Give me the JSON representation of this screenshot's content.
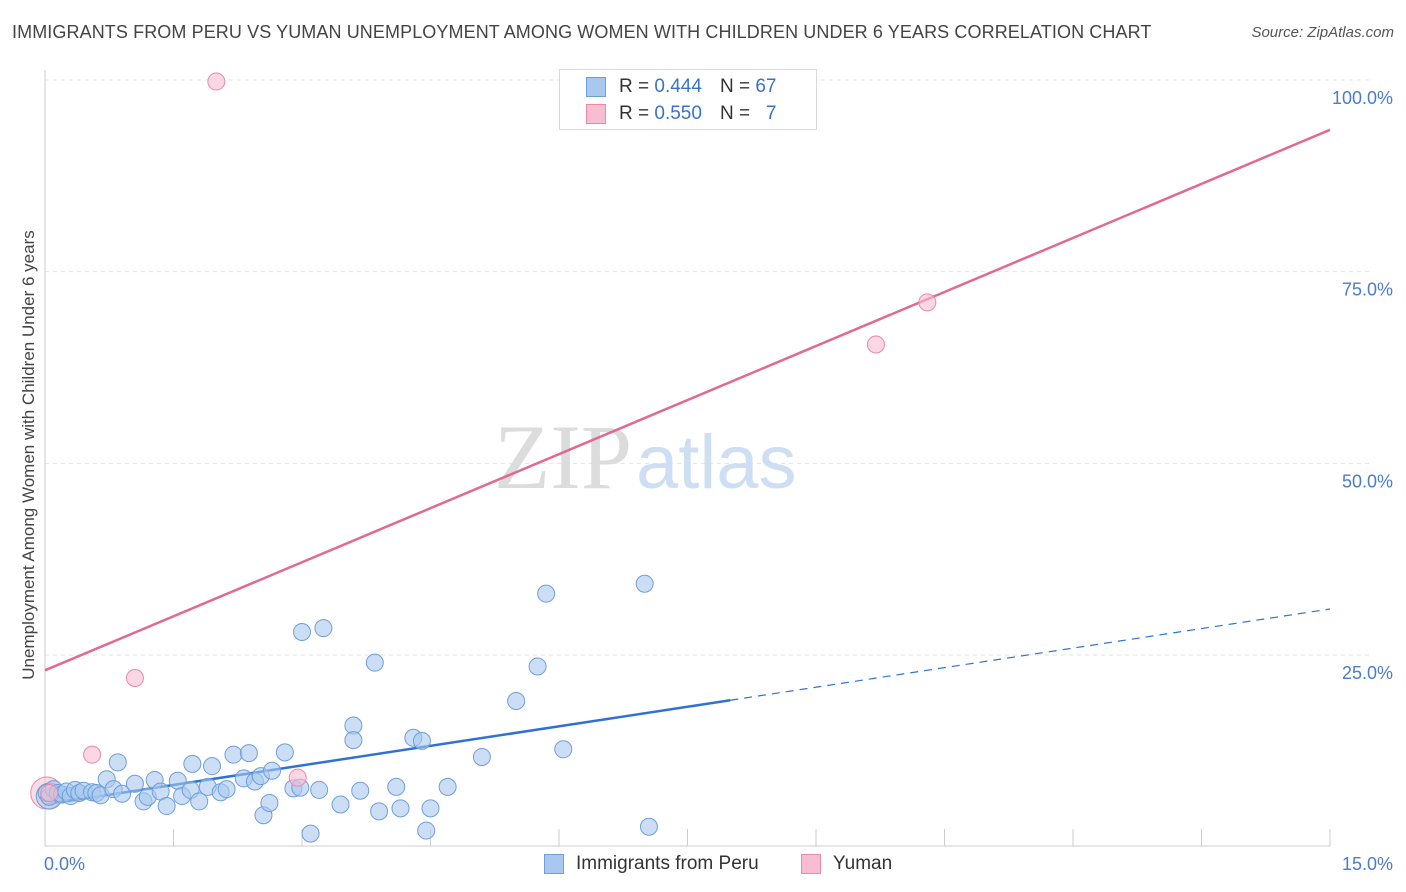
{
  "title": "IMMIGRANTS FROM PERU VS YUMAN UNEMPLOYMENT AMONG WOMEN WITH CHILDREN UNDER 6 YEARS CORRELATION CHART",
  "source": "Source: ZipAtlas.com",
  "watermark": {
    "zip": "ZIP",
    "atlas": "atlas"
  },
  "legend": {
    "series1": {
      "r_label": "R =",
      "r_value": "0.444",
      "n_label": "N =",
      "n_value": "67"
    },
    "series2": {
      "r_label": "R =",
      "r_value": "0.550",
      "n_label": "N =",
      "n_value": "7"
    }
  },
  "colors": {
    "blue_fill": "#a9c8f0",
    "blue_stroke": "#6f9fd8",
    "blue_line": "#2f72d3",
    "pink_fill": "#f7bdd0",
    "pink_stroke": "#e88aa8",
    "pink_line": "#e06a92",
    "grid": "#e3e3e3",
    "tick_text": "#4a7cc9"
  },
  "chart_data": {
    "type": "scatter",
    "title": "IMMIGRANTS FROM PERU VS YUMAN UNEMPLOYMENT AMONG WOMEN WITH CHILDREN UNDER 6 YEARS CORRELATION CHART",
    "xlabel": "",
    "ylabel": "Unemployment Among Women with Children Under 6 years",
    "xlim": [
      0,
      15
    ],
    "ylim": [
      0,
      104
    ],
    "x_tick_labels": [
      {
        "value": 0,
        "label": "0.0%"
      },
      {
        "value": 15,
        "label": "15.0%"
      }
    ],
    "y_tick_labels": [
      {
        "value": 25,
        "label": "25.0%"
      },
      {
        "value": 50,
        "label": "50.0%"
      },
      {
        "value": 75,
        "label": "75.0%"
      },
      {
        "value": 100,
        "label": "100.0%"
      }
    ],
    "series": [
      {
        "name": "Immigrants from Peru",
        "color": "blue",
        "r": 0.444,
        "n": 67,
        "trend": {
          "x_start": 0,
          "y_start": 5.5,
          "x_solid_end": 8.0,
          "x_end": 15,
          "y_end": 31.0
        },
        "points": [
          [
            0.02,
            7.0
          ],
          [
            0.05,
            6.5
          ],
          [
            0.1,
            7.5
          ],
          [
            0.15,
            7.0
          ],
          [
            0.2,
            6.8
          ],
          [
            0.25,
            7.2
          ],
          [
            0.3,
            6.6
          ],
          [
            0.35,
            7.4
          ],
          [
            0.4,
            7.0
          ],
          [
            0.45,
            7.3
          ],
          [
            0.55,
            7.1
          ],
          [
            0.6,
            7.0
          ],
          [
            0.65,
            6.7
          ],
          [
            0.72,
            8.8
          ],
          [
            0.8,
            7.5
          ],
          [
            0.85,
            11.0
          ],
          [
            0.9,
            6.9
          ],
          [
            1.05,
            8.2
          ],
          [
            1.15,
            5.9
          ],
          [
            1.2,
            6.5
          ],
          [
            1.28,
            8.7
          ],
          [
            1.35,
            7.2
          ],
          [
            1.42,
            5.3
          ],
          [
            1.55,
            8.6
          ],
          [
            1.6,
            6.6
          ],
          [
            1.7,
            7.4
          ],
          [
            1.72,
            10.8
          ],
          [
            1.8,
            5.9
          ],
          [
            1.9,
            7.8
          ],
          [
            1.95,
            10.5
          ],
          [
            2.05,
            7.1
          ],
          [
            2.12,
            7.5
          ],
          [
            2.2,
            12.0
          ],
          [
            2.32,
            8.9
          ],
          [
            2.38,
            12.2
          ],
          [
            2.45,
            8.5
          ],
          [
            2.52,
            9.2
          ],
          [
            2.55,
            4.1
          ],
          [
            2.62,
            5.7
          ],
          [
            2.65,
            9.9
          ],
          [
            2.8,
            12.3
          ],
          [
            2.9,
            7.6
          ],
          [
            2.98,
            7.7
          ],
          [
            3.1,
            1.7
          ],
          [
            3.2,
            7.4
          ],
          [
            3.25,
            28.5
          ],
          [
            3.45,
            5.5
          ],
          [
            3.6,
            15.8
          ],
          [
            3.6,
            13.9
          ],
          [
            3.68,
            7.3
          ],
          [
            3.85,
            24.0
          ],
          [
            3.9,
            4.6
          ],
          [
            4.1,
            7.8
          ],
          [
            4.15,
            5.0
          ],
          [
            4.3,
            14.2
          ],
          [
            4.4,
            13.8
          ],
          [
            4.45,
            2.1
          ],
          [
            4.5,
            5.0
          ],
          [
            4.7,
            7.8
          ],
          [
            5.1,
            11.7
          ],
          [
            5.5,
            19.0
          ],
          [
            5.75,
            23.5
          ],
          [
            5.85,
            33.0
          ],
          [
            6.05,
            12.7
          ],
          [
            7.0,
            34.3
          ],
          [
            7.05,
            2.6
          ],
          [
            3.0,
            28.0
          ]
        ]
      },
      {
        "name": "Yuman",
        "color": "pink",
        "r": 0.55,
        "n": 7,
        "trend": {
          "x_start": 0,
          "y_start": 23.0,
          "x_end": 15,
          "y_end": 93.5
        },
        "points": [
          [
            0.05,
            7.0
          ],
          [
            0.55,
            12.0
          ],
          [
            1.05,
            22.0
          ],
          [
            2.0,
            99.8
          ],
          [
            2.95,
            9.0
          ],
          [
            10.3,
            71.0
          ],
          [
            9.7,
            65.5
          ]
        ]
      }
    ],
    "legend_entries": [
      "Immigrants from Peru",
      "Yuman"
    ]
  }
}
